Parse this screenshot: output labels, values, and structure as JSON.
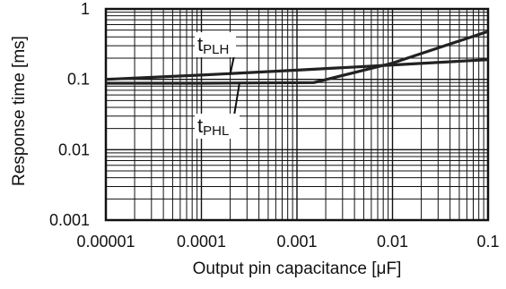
{
  "chart_data": {
    "type": "line",
    "xscale": "log",
    "yscale": "log",
    "xlim": [
      1e-05,
      0.1
    ],
    "ylim": [
      0.001,
      1
    ],
    "x_ticks": [
      "0.00001",
      "0.0001",
      "0.001",
      "0.01",
      "0.1"
    ],
    "y_ticks": [
      "1",
      "0.1",
      "0.01",
      "0.001"
    ],
    "xlabel": "Output pin capacitance [μF]",
    "ylabel": "Response time [ms]",
    "grid": true,
    "series": [
      {
        "name": "tPLH",
        "label_main": "t",
        "label_sub": "PLH",
        "x": [
          1e-05,
          0.0001,
          0.001,
          0.01,
          0.1
        ],
        "y": [
          0.1,
          0.115,
          0.135,
          0.16,
          0.19
        ]
      },
      {
        "name": "tPHL",
        "label_main": "t",
        "label_sub": "PHL",
        "x": [
          1e-05,
          0.0001,
          0.0015,
          0.01,
          0.1
        ],
        "y": [
          0.088,
          0.088,
          0.09,
          0.17,
          0.48
        ]
      }
    ]
  }
}
